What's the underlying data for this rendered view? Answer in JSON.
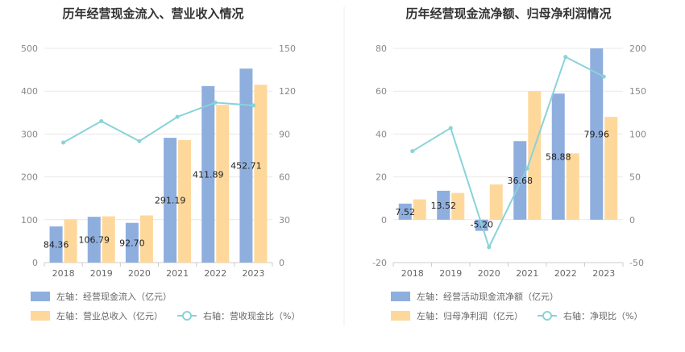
{
  "chart_data": [
    {
      "type": "bar",
      "title": "历年经营现金流入、营业收入情况",
      "categories": [
        "2018",
        "2019",
        "2020",
        "2021",
        "2022",
        "2023"
      ],
      "left_axis": {
        "ylim": [
          0,
          500
        ],
        "ticks": [
          "0",
          "100",
          "200",
          "300",
          "400",
          "500"
        ]
      },
      "right_axis": {
        "ylim": [
          0,
          150
        ],
        "ticks": [
          "0",
          "30",
          "60",
          "90",
          "120",
          "150"
        ]
      },
      "series": [
        {
          "name": "左轴：经营现金流入（亿元）",
          "kind": "bar",
          "axis": "left",
          "color": "#8eaede",
          "values": [
            84.36,
            106.79,
            92.7,
            291.19,
            411.89,
            452.71
          ],
          "labels": [
            "84.36",
            "106.79",
            "92.70",
            "291.19",
            "411.89",
            "452.71"
          ]
        },
        {
          "name": "左轴：营业总收入（亿元）",
          "kind": "bar",
          "axis": "left",
          "color": "#fed89b",
          "values": [
            101,
            108,
            110,
            286,
            368,
            415
          ]
        },
        {
          "name": "右轴：营收现金比（%）",
          "kind": "line",
          "axis": "right",
          "color": "#88d3d8",
          "values": [
            84,
            99,
            85,
            102,
            112,
            110
          ]
        }
      ],
      "legend_position": "bottom-left"
    },
    {
      "type": "bar",
      "title": "历年经营现金流净额、归母净利润情况",
      "categories": [
        "2018",
        "2019",
        "2020",
        "2021",
        "2022",
        "2023"
      ],
      "left_axis": {
        "ylim": [
          -20,
          80
        ],
        "ticks": [
          "-20",
          "0",
          "20",
          "40",
          "60",
          "80"
        ]
      },
      "right_axis": {
        "ylim": [
          -50,
          200
        ],
        "ticks": [
          "-50",
          "0",
          "50",
          "100",
          "150",
          "200"
        ]
      },
      "series": [
        {
          "name": "左轴：经营活动现金流净额（亿元）",
          "kind": "bar",
          "axis": "left",
          "color": "#8eaede",
          "values": [
            7.52,
            13.52,
            -5.2,
            36.68,
            58.88,
            79.96
          ],
          "labels": [
            "7.52",
            "13.52",
            "-5.20",
            "36.68",
            "58.88",
            "79.96"
          ]
        },
        {
          "name": "左轴：归母净利润（亿元）",
          "kind": "bar",
          "axis": "left",
          "color": "#fed89b",
          "values": [
            9.5,
            12.5,
            16.5,
            60,
            31,
            48
          ]
        },
        {
          "name": "右轴：净现比（%）",
          "kind": "line",
          "axis": "right",
          "color": "#88d3d8",
          "values": [
            80,
            107,
            -32,
            60,
            190,
            167
          ]
        }
      ],
      "legend_position": "bottom-left"
    }
  ]
}
